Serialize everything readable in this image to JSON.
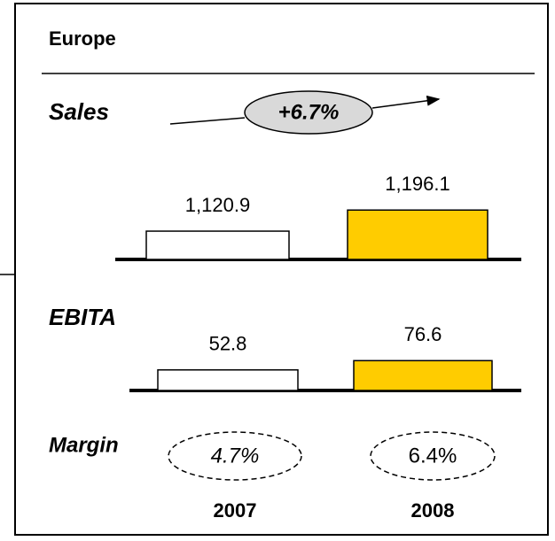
{
  "title": "Europe",
  "chart_data": [
    {
      "type": "bar",
      "title": "Sales",
      "annotation": "+6.7%",
      "categories": [
        "2007",
        "2008"
      ],
      "values": [
        1120.9,
        1196.1
      ],
      "value_labels": [
        "1,120.9",
        "1,196.1"
      ],
      "colors": [
        "#ffffff",
        "#ffcc00"
      ],
      "ylim": [
        1020,
        1260
      ]
    },
    {
      "type": "bar",
      "title": "EBITA",
      "values": [
        52.8,
        76.6
      ],
      "colors": [
        "#ffffff",
        "#ffcc00"
      ],
      "ylim": [
        0,
        100
      ]
    }
  ],
  "margin": {
    "label": "Margin",
    "values": [
      4.7,
      6.4
    ],
    "value_labels": [
      "4.7%",
      "6.4%"
    ]
  }
}
